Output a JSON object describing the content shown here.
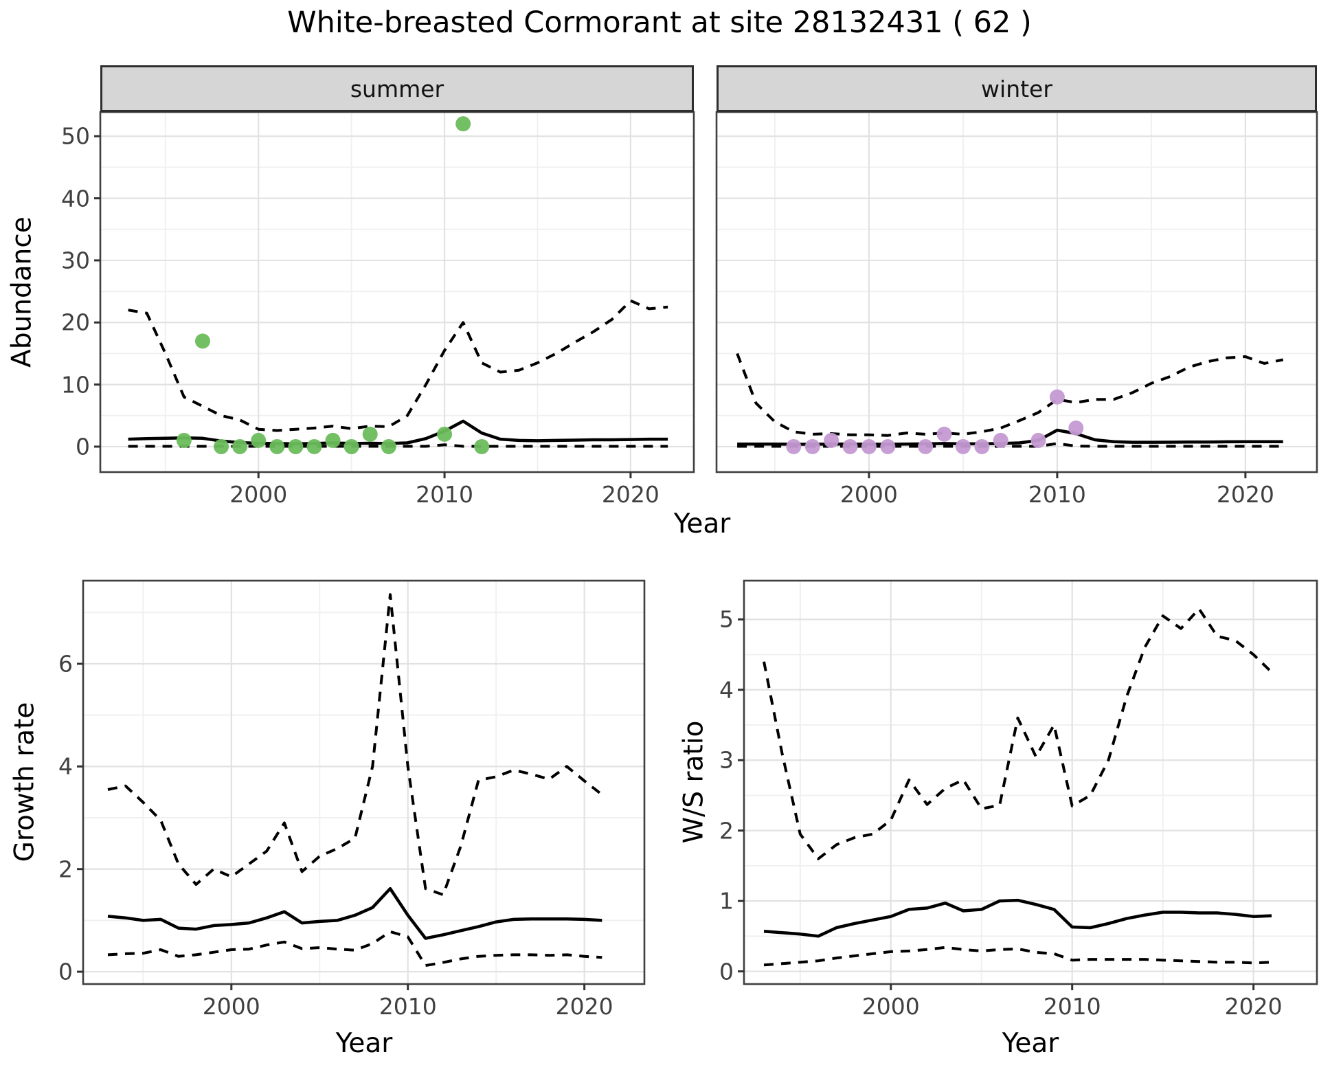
{
  "title": "White-breasted Cormorant at site 28132431 ( 62 )",
  "colors": {
    "summer_point": "#6bbc5b",
    "winter_point": "#c49ad3",
    "line": "#000000",
    "strip_background": "#d6d6d6",
    "panel_border": "#3f3f3f",
    "grid_major": "#e2e2e2",
    "grid_minor": "#f0f0f0",
    "tick_text": "#404040"
  },
  "chart_data": [
    {
      "id": "abundance_summer",
      "type": "line",
      "facet_label": "summer",
      "xlabel": "Year",
      "ylabel": "Abundance",
      "xlim": [
        1991.5,
        2023.4
      ],
      "ylim": [
        -4.1,
        53.9
      ],
      "x_ticks": [
        2000,
        2010,
        2020
      ],
      "x_minor": [
        1995,
        2005,
        2015
      ],
      "y_ticks": [
        0,
        10,
        20,
        30,
        40,
        50
      ],
      "y_minor": [
        5,
        15,
        25,
        35,
        45
      ],
      "x": [
        1993,
        1994,
        1995,
        1996,
        1997,
        1998,
        1999,
        2000,
        2001,
        2002,
        2003,
        2004,
        2005,
        2006,
        2007,
        2008,
        2009,
        2010,
        2011,
        2012,
        2013,
        2014,
        2015,
        2016,
        2017,
        2018,
        2019,
        2020,
        2021,
        2022
      ],
      "series": [
        {
          "name": "lower95",
          "style": "dashed",
          "values": [
            0.05,
            0.05,
            0.05,
            0.05,
            0.05,
            0.05,
            0.05,
            0.05,
            0.05,
            0.05,
            0.05,
            0.05,
            0.05,
            0.05,
            0.05,
            0.05,
            0.05,
            0.3,
            0.05,
            0.05,
            0.05,
            0.05,
            0.05,
            0.05,
            0.05,
            0.05,
            0.05,
            0.05,
            0.05,
            0.05
          ]
        },
        {
          "name": "upper95",
          "style": "dashed",
          "values": [
            22,
            21.5,
            15,
            8,
            6.5,
            5,
            4.3,
            2.8,
            2.6,
            2.8,
            3.0,
            3.3,
            2.9,
            3.3,
            3.2,
            5.0,
            10,
            15.5,
            20,
            13.5,
            12,
            12.3,
            13.5,
            15,
            16.8,
            18.5,
            20.5,
            23.5,
            22.2,
            22.5
          ]
        },
        {
          "name": "mean",
          "style": "solid",
          "values": [
            1.2,
            1.3,
            1.35,
            1.4,
            1.35,
            0.9,
            0.65,
            0.55,
            0.5,
            0.45,
            0.5,
            0.6,
            0.5,
            0.55,
            0.5,
            0.6,
            1.3,
            2.5,
            4.1,
            2.2,
            1.2,
            1.0,
            0.95,
            1.0,
            1.05,
            1.1,
            1.1,
            1.15,
            1.2,
            1.2
          ]
        }
      ],
      "points": {
        "name": "observed-counts-summer",
        "color": "#6bbc5b",
        "x": [
          1996,
          1997,
          1998,
          1999,
          2000,
          2001,
          2002,
          2003,
          2004,
          2005,
          2006,
          2007,
          2010,
          2011,
          2012
        ],
        "y": [
          1,
          17,
          0,
          0,
          1,
          0,
          0,
          0,
          1,
          0,
          2,
          0,
          2,
          52,
          0
        ]
      }
    },
    {
      "id": "abundance_winter",
      "type": "line",
      "facet_label": "winter",
      "xlabel": "Year",
      "ylabel": "Abundance",
      "xlim": [
        1991.9,
        2023.8
      ],
      "ylim": [
        -4.1,
        53.9
      ],
      "x_ticks": [
        2000,
        2010,
        2020
      ],
      "x_minor": [
        1995,
        2005,
        2015
      ],
      "y_ticks": [
        0,
        10,
        20,
        30,
        40,
        50
      ],
      "y_minor": [
        5,
        15,
        25,
        35,
        45
      ],
      "x": [
        1993,
        1994,
        1995,
        1996,
        1997,
        1998,
        1999,
        2000,
        2001,
        2002,
        2003,
        2004,
        2005,
        2006,
        2007,
        2008,
        2009,
        2010,
        2011,
        2012,
        2013,
        2014,
        2015,
        2016,
        2017,
        2018,
        2019,
        2020,
        2021,
        2022
      ],
      "series": [
        {
          "name": "lower95",
          "style": "dashed",
          "values": [
            0.05,
            0.05,
            0.05,
            0.05,
            0.05,
            0.05,
            0.05,
            0.05,
            0.05,
            0.05,
            0.05,
            0.05,
            0.05,
            0.05,
            0.05,
            0.05,
            0.05,
            0.5,
            0.1,
            0.05,
            0.05,
            0.05,
            0.05,
            0.05,
            0.05,
            0.05,
            0.05,
            0.05,
            0.05,
            0.05
          ]
        },
        {
          "name": "upper95",
          "style": "dashed",
          "values": [
            15,
            7,
            4,
            2.4,
            2.0,
            2.1,
            1.9,
            1.9,
            1.8,
            2.2,
            2.0,
            2.2,
            2.0,
            2.4,
            3.0,
            4.2,
            5.5,
            7.6,
            7.1,
            7.6,
            7.6,
            8.7,
            10.2,
            11.3,
            12.8,
            13.7,
            14.3,
            14.5,
            13.4,
            14.0
          ]
        },
        {
          "name": "mean",
          "style": "solid",
          "values": [
            0.4,
            0.4,
            0.4,
            0.38,
            0.38,
            0.4,
            0.4,
            0.38,
            0.38,
            0.4,
            0.45,
            0.5,
            0.45,
            0.45,
            0.5,
            0.6,
            1.0,
            2.65,
            2.1,
            1.1,
            0.8,
            0.7,
            0.7,
            0.72,
            0.75,
            0.75,
            0.78,
            0.8,
            0.8,
            0.8
          ]
        }
      ],
      "points": {
        "name": "observed-counts-winter",
        "color": "#c49ad3",
        "x": [
          1996,
          1997,
          1998,
          1999,
          2000,
          2001,
          2003,
          2004,
          2005,
          2006,
          2007,
          2009,
          2010,
          2011
        ],
        "y": [
          0,
          0,
          1,
          0,
          0,
          0,
          0,
          2,
          0,
          0,
          1,
          1,
          8,
          3
        ]
      }
    },
    {
      "id": "growth_rate",
      "type": "line",
      "facet_label": "",
      "xlabel": "Year",
      "ylabel": "Growth rate",
      "xlim": [
        1991.6,
        2023.4
      ],
      "ylim": [
        -0.24,
        7.62
      ],
      "x_ticks": [
        2000,
        2010,
        2020
      ],
      "x_minor": [
        1995,
        2005,
        2015
      ],
      "y_ticks": [
        0,
        2,
        4,
        6
      ],
      "y_minor": [
        1,
        3,
        5,
        7
      ],
      "x": [
        1993,
        1994,
        1995,
        1996,
        1997,
        1998,
        1999,
        2000,
        2001,
        2002,
        2003,
        2004,
        2005,
        2006,
        2007,
        2008,
        2009,
        2010,
        2011,
        2012,
        2013,
        2014,
        2015,
        2016,
        2017,
        2018,
        2019,
        2020,
        2021
      ],
      "series": [
        {
          "name": "lower95",
          "style": "dashed",
          "values": [
            0.33,
            0.35,
            0.36,
            0.43,
            0.3,
            0.33,
            0.38,
            0.43,
            0.44,
            0.52,
            0.58,
            0.45,
            0.47,
            0.44,
            0.42,
            0.55,
            0.78,
            0.68,
            0.12,
            0.18,
            0.25,
            0.3,
            0.32,
            0.33,
            0.33,
            0.32,
            0.33,
            0.3,
            0.28
          ]
        },
        {
          "name": "upper95",
          "style": "dashed",
          "values": [
            3.55,
            3.62,
            3.3,
            2.95,
            2.1,
            1.7,
            2.0,
            1.85,
            2.1,
            2.35,
            2.9,
            1.95,
            2.25,
            2.4,
            2.6,
            4.0,
            7.35,
            4.0,
            1.62,
            1.5,
            2.45,
            3.73,
            3.8,
            3.93,
            3.85,
            3.75,
            4.0,
            3.72,
            3.45
          ]
        },
        {
          "name": "mean",
          "style": "solid",
          "values": [
            1.08,
            1.05,
            1.0,
            1.02,
            0.85,
            0.83,
            0.9,
            0.92,
            0.95,
            1.05,
            1.17,
            0.95,
            0.98,
            1.0,
            1.1,
            1.25,
            1.62,
            1.1,
            0.65,
            0.72,
            0.8,
            0.88,
            0.97,
            1.02,
            1.03,
            1.03,
            1.03,
            1.02,
            1.0
          ]
        }
      ],
      "points": null
    },
    {
      "id": "ws_ratio",
      "type": "line",
      "facet_label": "",
      "xlabel": "Year",
      "ylabel": "W/S ratio",
      "xlim": [
        1991.9,
        2023.5
      ],
      "ylim": [
        -0.18,
        5.55
      ],
      "x_ticks": [
        2000,
        2010,
        2020
      ],
      "x_minor": [
        1995,
        2005,
        2015
      ],
      "y_ticks": [
        0,
        1,
        2,
        3,
        4,
        5
      ],
      "y_minor": [
        0.5,
        1.5,
        2.5,
        3.5,
        4.5
      ],
      "x": [
        1993,
        1994,
        1995,
        1996,
        1997,
        1998,
        1999,
        2000,
        2001,
        2002,
        2003,
        2004,
        2005,
        2006,
        2007,
        2008,
        2009,
        2010,
        2011,
        2012,
        2013,
        2014,
        2015,
        2016,
        2017,
        2018,
        2019,
        2020,
        2021
      ],
      "series": [
        {
          "name": "lower95",
          "style": "dashed",
          "values": [
            0.09,
            0.11,
            0.13,
            0.15,
            0.19,
            0.22,
            0.25,
            0.28,
            0.29,
            0.31,
            0.34,
            0.31,
            0.29,
            0.31,
            0.32,
            0.27,
            0.25,
            0.16,
            0.17,
            0.17,
            0.17,
            0.17,
            0.16,
            0.15,
            0.14,
            0.13,
            0.13,
            0.12,
            0.13
          ]
        },
        {
          "name": "upper95",
          "style": "dashed",
          "values": [
            4.4,
            3.1,
            1.95,
            1.6,
            1.8,
            1.9,
            1.95,
            2.15,
            2.72,
            2.37,
            2.6,
            2.72,
            2.31,
            2.36,
            3.6,
            3.05,
            3.5,
            2.35,
            2.5,
            3.0,
            3.9,
            4.6,
            5.05,
            4.87,
            5.15,
            4.76,
            4.7,
            4.5,
            4.25
          ]
        },
        {
          "name": "mean",
          "style": "solid",
          "values": [
            0.57,
            0.55,
            0.53,
            0.5,
            0.62,
            0.68,
            0.73,
            0.78,
            0.88,
            0.9,
            0.97,
            0.86,
            0.88,
            1.0,
            1.01,
            0.95,
            0.88,
            0.63,
            0.62,
            0.68,
            0.75,
            0.8,
            0.84,
            0.84,
            0.83,
            0.83,
            0.81,
            0.78,
            0.79
          ]
        }
      ],
      "points": null
    }
  ]
}
